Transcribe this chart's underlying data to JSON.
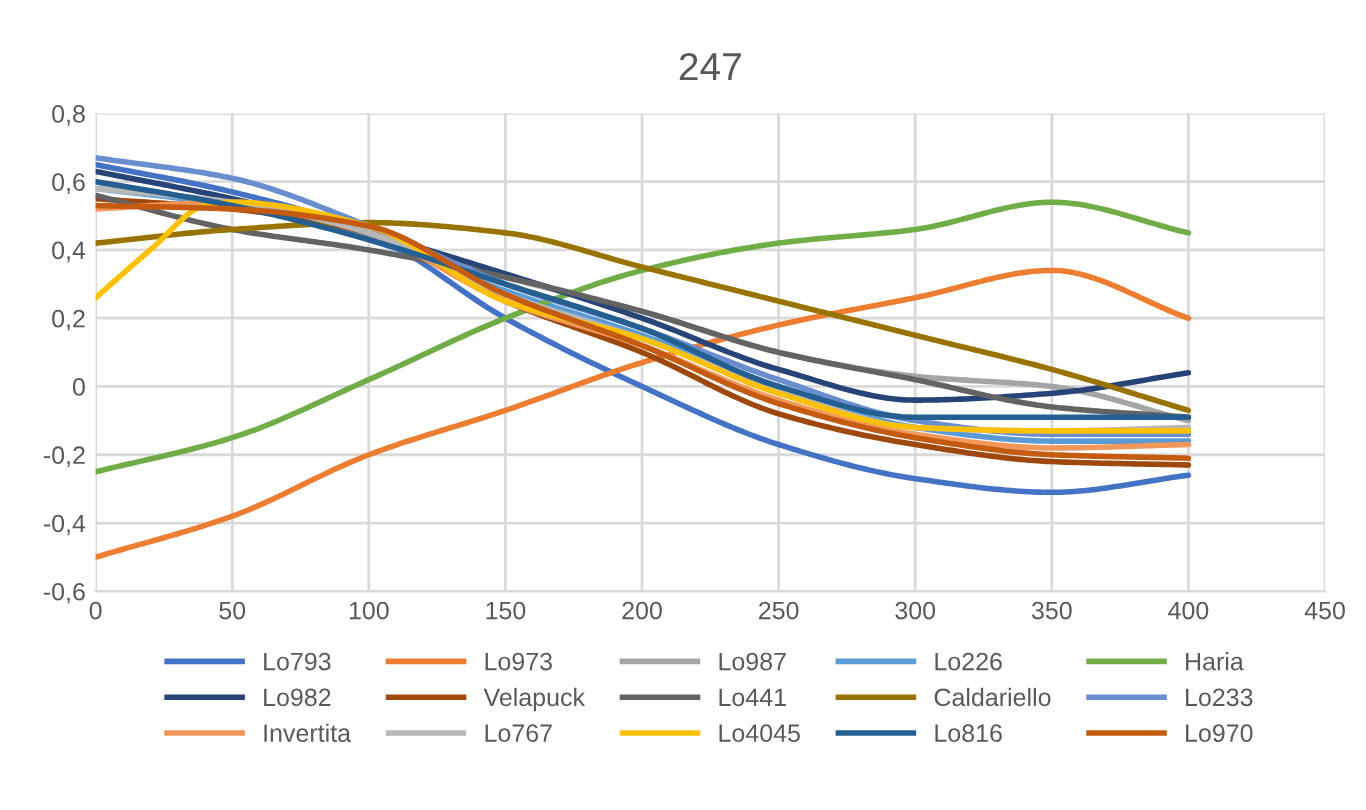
{
  "chart_data": {
    "type": "line",
    "title": "247",
    "x": [
      0,
      50,
      100,
      150,
      200,
      250,
      300,
      350,
      400
    ],
    "xlim": [
      0,
      450
    ],
    "xticks": [
      0,
      50,
      100,
      150,
      200,
      250,
      300,
      350,
      400,
      450
    ],
    "ylim": [
      -0.6,
      0.8
    ],
    "yticks": [
      {
        "value": -0.6,
        "label": "-0,6"
      },
      {
        "value": -0.4,
        "label": "-0,4"
      },
      {
        "value": -0.2,
        "label": "-0,2"
      },
      0,
      {
        "value": 0.2,
        "label": "0,2"
      },
      {
        "value": 0.4,
        "label": "0,4"
      },
      {
        "value": 0.6,
        "label": "0,6"
      },
      {
        "value": 0.8,
        "label": "0,8"
      }
    ],
    "grid": true,
    "legend": "bottom",
    "marker": "none",
    "line_style": "solid",
    "series": [
      {
        "name": "Lo793",
        "color": "#4472c4",
        "values": [
          0.65,
          0.57,
          0.45,
          0.2,
          0.0,
          -0.17,
          -0.27,
          -0.31,
          -0.26
        ]
      },
      {
        "name": "Lo973",
        "color": "#ed7d31",
        "values": [
          -0.5,
          -0.38,
          -0.2,
          -0.07,
          0.07,
          0.18,
          0.26,
          0.34,
          0.2
        ]
      },
      {
        "name": "Lo987",
        "color": "#a5a5a5",
        "values": [
          0.6,
          0.53,
          0.44,
          0.32,
          0.22,
          0.1,
          0.03,
          0.0,
          -0.1
        ]
      },
      {
        "name": "Lo226",
        "color": "#5b9bd5",
        "values": [
          0.58,
          0.53,
          0.43,
          0.28,
          0.15,
          0.0,
          -0.12,
          -0.16,
          -0.16
        ]
      },
      {
        "name": "Haria",
        "color": "#70ad47",
        "values": [
          -0.25,
          -0.15,
          0.02,
          0.2,
          0.34,
          0.42,
          0.46,
          0.54,
          0.45
        ]
      },
      {
        "name": "Lo982",
        "color": "#264478",
        "values": [
          0.63,
          0.55,
          0.45,
          0.33,
          0.2,
          0.05,
          -0.04,
          -0.02,
          0.04
        ]
      },
      {
        "name": "Velapuck",
        "color": "#9e480e",
        "values": [
          0.55,
          0.52,
          0.45,
          0.25,
          0.1,
          -0.08,
          -0.17,
          -0.22,
          -0.23
        ]
      },
      {
        "name": "Lo441",
        "color": "#636363",
        "values": [
          0.56,
          0.46,
          0.4,
          0.32,
          0.22,
          0.1,
          0.02,
          -0.06,
          -0.09
        ]
      },
      {
        "name": "Caldariello",
        "color": "#997300",
        "values": [
          0.42,
          0.46,
          0.48,
          0.45,
          0.35,
          0.25,
          0.15,
          0.05,
          -0.07
        ]
      },
      {
        "name": "Lo233",
        "color": "#698ed0",
        "values": [
          0.67,
          0.61,
          0.47,
          0.3,
          0.17,
          0.02,
          -0.1,
          -0.14,
          -0.14
        ]
      },
      {
        "name": "Invertita",
        "color": "#f1975a",
        "values": [
          0.52,
          0.54,
          0.45,
          0.25,
          0.12,
          -0.04,
          -0.14,
          -0.18,
          -0.17
        ]
      },
      {
        "name": "Lo767",
        "color": "#b7b7b7",
        "values": [
          0.58,
          0.54,
          0.45,
          0.27,
          0.14,
          -0.01,
          -0.12,
          -0.13,
          -0.12
        ]
      },
      {
        "name": "Lo4045",
        "color": "#ffc000",
        "x": [
          0,
          20,
          40,
          50,
          100,
          150,
          200,
          250,
          300,
          350,
          400
        ],
        "values": [
          0.26,
          0.4,
          0.53,
          0.54,
          0.47,
          0.25,
          0.14,
          -0.02,
          -0.12,
          -0.13,
          -0.13
        ]
      },
      {
        "name": "Lo816",
        "color": "#255e91",
        "values": [
          0.6,
          0.53,
          0.43,
          0.3,
          0.17,
          0.0,
          -0.09,
          -0.09,
          -0.09
        ]
      },
      {
        "name": "Lo970",
        "color": "#c55a11",
        "values": [
          0.53,
          0.52,
          0.47,
          0.27,
          0.12,
          -0.05,
          -0.15,
          -0.2,
          -0.21
        ]
      }
    ]
  }
}
